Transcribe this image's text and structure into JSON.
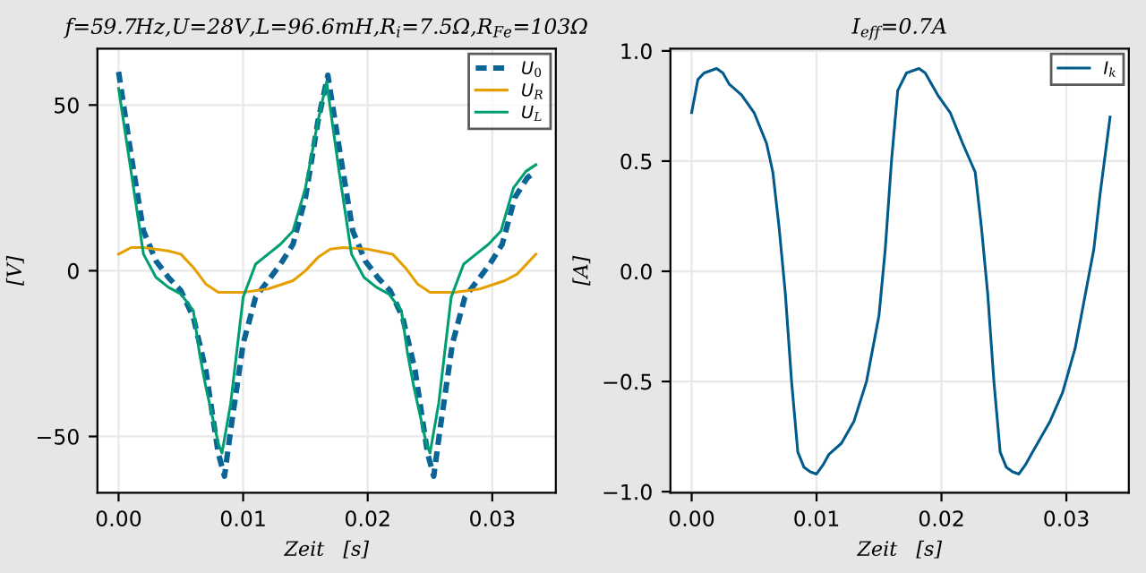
{
  "chart_data": [
    {
      "type": "line",
      "title": "f=59.7Hz,U=28V,L=96.6mH,R$_{i}$=7.5Ω,R$_{Fe}$=103Ω",
      "xlabel": "Zeit   [s]",
      "ylabel": "[V]",
      "xlim": [
        -0.0017,
        0.0351
      ],
      "ylim": [
        -67,
        67
      ],
      "xticks": [
        {
          "value": 0,
          "label": "0.00"
        },
        0.01,
        0.02,
        0.03
      ],
      "yticks": [
        {
          "value": -50,
          "label": "−50"
        },
        0,
        50
      ],
      "grid": true,
      "legend": "top right",
      "marker": "none",
      "series": [
        {
          "name": "U$_{0}$",
          "color": "#0a6496",
          "line_style": "dashed",
          "x": [
            0,
            0.001,
            0.002,
            0.003,
            0.004,
            0.005,
            0.006,
            0.007,
            0.008,
            0.0085,
            0.009,
            0.01,
            0.011,
            0.012,
            0.013,
            0.014,
            0.015,
            0.016,
            0.0168,
            0.0178,
            0.0188,
            0.0198,
            0.0208,
            0.0218,
            0.0228,
            0.0238,
            0.0248,
            0.0253,
            0.0258,
            0.0268,
            0.0278,
            0.0288,
            0.0298,
            0.0308,
            0.0318,
            0.0328,
            0.0335
          ],
          "values": [
            60,
            35,
            12,
            3,
            -2,
            -6,
            -14,
            -30,
            -55,
            -62,
            -48,
            -22,
            -8,
            -3,
            2,
            8,
            22,
            45,
            59,
            35,
            12,
            3,
            -2,
            -6,
            -14,
            -30,
            -55,
            -62,
            -48,
            -22,
            -8,
            -3,
            2,
            8,
            22,
            28,
            30
          ]
        },
        {
          "name": "U$_{R}$",
          "color": "#e69f00",
          "line_style": "solid",
          "x": [
            0,
            0.001,
            0.002,
            0.004,
            0.005,
            0.006,
            0.007,
            0.008,
            0.01,
            0.012,
            0.014,
            0.015,
            0.016,
            0.017,
            0.018,
            0.02,
            0.022,
            0.023,
            0.024,
            0.025,
            0.027,
            0.029,
            0.031,
            0.032,
            0.0335
          ],
          "values": [
            5,
            7,
            7,
            6,
            5,
            1,
            -4,
            -6.5,
            -6.5,
            -5.5,
            -3,
            0,
            4,
            6.5,
            7,
            6.5,
            5,
            1,
            -4,
            -6.5,
            -6.5,
            -5.5,
            -3,
            -1,
            5
          ]
        },
        {
          "name": "U$_{L}$",
          "color": "#009e73",
          "line_style": "solid",
          "x": [
            0,
            0.001,
            0.002,
            0.003,
            0.004,
            0.005,
            0.006,
            0.0065,
            0.007,
            0.008,
            0.0083,
            0.009,
            0.01,
            0.011,
            0.012,
            0.013,
            0.014,
            0.015,
            0.016,
            0.0167,
            0.0177,
            0.0187,
            0.0197,
            0.0207,
            0.0217,
            0.0227,
            0.0232,
            0.0237,
            0.0247,
            0.025,
            0.0257,
            0.0267,
            0.0277,
            0.0287,
            0.0297,
            0.0307,
            0.0317,
            0.0327,
            0.0335
          ],
          "values": [
            55,
            30,
            5,
            -2,
            -5,
            -7,
            -12,
            -25,
            -35,
            -52,
            -55,
            -40,
            -8,
            2,
            5,
            8,
            12,
            25,
            45,
            57,
            30,
            5,
            -2,
            -5,
            -7,
            -12,
            -25,
            -35,
            -52,
            -55,
            -40,
            -8,
            2,
            5,
            8,
            12,
            25,
            30,
            32
          ]
        }
      ]
    },
    {
      "type": "line",
      "title": "I$_{eff}$=0.7A",
      "xlabel": "Zeit   [s]",
      "ylabel": "[A]",
      "xlim": [
        -0.0017,
        0.035
      ],
      "ylim": [
        -1.005,
        1.01
      ],
      "xticks": [
        {
          "value": 0,
          "label": "0.00"
        },
        0.01,
        0.02,
        0.03
      ],
      "yticks": [
        {
          "value": -1,
          "label": "−1.0"
        },
        {
          "value": -0.5,
          "label": "−0.5"
        },
        {
          "value": 0,
          "label": "0.0"
        },
        0.5,
        {
          "value": 1,
          "label": "1.0"
        }
      ],
      "grid": true,
      "legend": "top right",
      "marker": "none",
      "series": [
        {
          "name": "I$_{k}$",
          "color": "#005a8c",
          "line_style": "solid",
          "x": [
            0,
            0.0005,
            0.001,
            0.0015,
            0.002,
            0.0025,
            0.003,
            0.004,
            0.005,
            0.006,
            0.0065,
            0.007,
            0.0075,
            0.008,
            0.0085,
            0.009,
            0.0095,
            0.01,
            0.0105,
            0.011,
            0.012,
            0.013,
            0.014,
            0.015,
            0.0155,
            0.016,
            0.0165,
            0.0172,
            0.0177,
            0.0182,
            0.0187,
            0.0192,
            0.0197,
            0.0207,
            0.0217,
            0.0227,
            0.0232,
            0.0237,
            0.0242,
            0.0247,
            0.0252,
            0.0257,
            0.0262,
            0.0267,
            0.0272,
            0.0277,
            0.0287,
            0.0297,
            0.0307,
            0.0317,
            0.0322,
            0.0327,
            0.0335
          ],
          "values": [
            0.72,
            0.87,
            0.9,
            0.91,
            0.92,
            0.9,
            0.85,
            0.8,
            0.72,
            0.58,
            0.45,
            0.2,
            -0.1,
            -0.5,
            -0.82,
            -0.89,
            -0.91,
            -0.92,
            -0.88,
            -0.83,
            -0.78,
            -0.68,
            -0.5,
            -0.2,
            0.1,
            0.5,
            0.82,
            0.9,
            0.91,
            0.92,
            0.9,
            0.85,
            0.8,
            0.72,
            0.58,
            0.45,
            0.2,
            -0.1,
            -0.5,
            -0.82,
            -0.89,
            -0.91,
            -0.92,
            -0.88,
            -0.83,
            -0.78,
            -0.68,
            -0.55,
            -0.35,
            -0.05,
            0.1,
            0.35,
            0.7
          ]
        }
      ]
    }
  ]
}
